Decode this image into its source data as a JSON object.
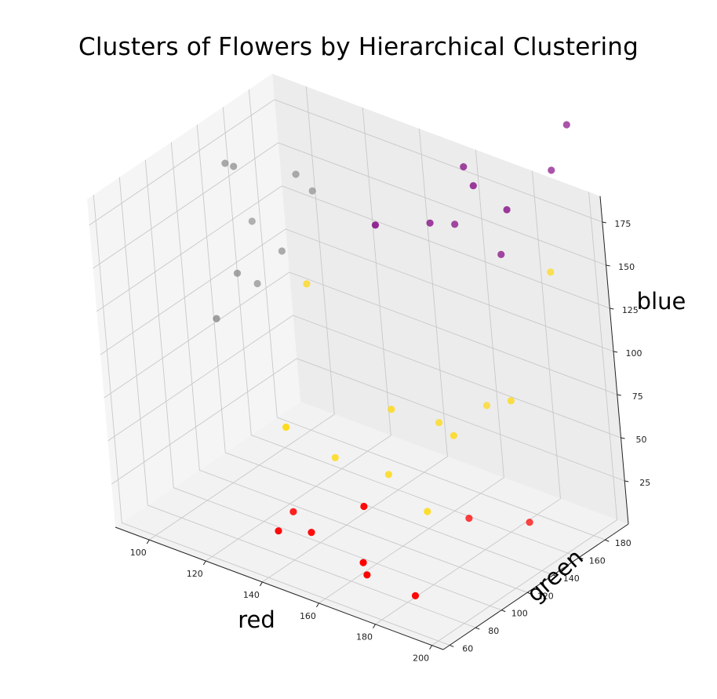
{
  "chart_data": {
    "type": "scatter",
    "projection": "3d",
    "title": "Clusters of Flowers by Hierarchical Clustering",
    "xlabel": "red",
    "ylabel": "green",
    "zlabel": "blue",
    "x_ticks": [
      100,
      120,
      140,
      160,
      180,
      200
    ],
    "y_ticks": [
      60,
      80,
      100,
      120,
      140,
      160,
      180
    ],
    "z_ticks": [
      25,
      50,
      75,
      100,
      125,
      150,
      175
    ],
    "xlim": [
      88,
      204
    ],
    "ylim": [
      55,
      198
    ],
    "zlim": [
      0,
      190
    ],
    "grid": true,
    "series": [
      {
        "color": "#ff0000",
        "points": [
          {
            "x": 140,
            "y": 70,
            "z": 22
          },
          {
            "x": 148,
            "y": 78,
            "z": 22
          },
          {
            "x": 132,
            "y": 98,
            "z": 14
          },
          {
            "x": 175,
            "y": 62,
            "z": 22
          },
          {
            "x": 170,
            "y": 70,
            "z": 22
          },
          {
            "x": 182,
            "y": 82,
            "z": 4
          },
          {
            "x": 166,
            "y": 82,
            "z": 46
          },
          {
            "x": 187,
            "y": 160,
            "z": 10
          },
          {
            "x": 170,
            "y": 150,
            "z": 7
          }
        ]
      },
      {
        "color": "#ffd700",
        "points": [
          {
            "x": 165,
            "y": 130,
            "z": 18
          },
          {
            "x": 148,
            "y": 138,
            "z": 25
          },
          {
            "x": 132,
            "y": 132,
            "z": 28
          },
          {
            "x": 132,
            "y": 98,
            "z": 63
          },
          {
            "x": 150,
            "y": 140,
            "z": 63
          },
          {
            "x": 167,
            "y": 150,
            "z": 53
          },
          {
            "x": 180,
            "y": 168,
            "z": 72
          },
          {
            "x": 165,
            "y": 180,
            "z": 54
          },
          {
            "x": 158,
            "y": 158,
            "z": 51
          },
          {
            "x": 118,
            "y": 150,
            "z": 111
          },
          {
            "x": 190,
            "y": 185,
            "z": 144
          }
        ]
      },
      {
        "color": "#800080",
        "points": [
          {
            "x": 160,
            "y": 120,
            "z": 186
          },
          {
            "x": 165,
            "y": 150,
            "z": 175
          },
          {
            "x": 168,
            "y": 162,
            "z": 170
          },
          {
            "x": 182,
            "y": 166,
            "z": 159
          },
          {
            "x": 191,
            "y": 155,
            "z": 196
          },
          {
            "x": 182,
            "y": 150,
            "z": 207
          },
          {
            "x": 174,
            "y": 160,
            "z": 208
          },
          {
            "x": 194,
            "y": 184,
            "z": 206
          },
          {
            "x": 200,
            "y": 186,
            "z": 235
          }
        ]
      },
      {
        "color": "#808080",
        "points": [
          {
            "x": 90,
            "y": 170,
            "z": 120
          },
          {
            "x": 95,
            "y": 160,
            "z": 92
          },
          {
            "x": 98,
            "y": 140,
            "z": 110
          },
          {
            "x": 105,
            "y": 160,
            "z": 117
          },
          {
            "x": 110,
            "y": 165,
            "z": 162
          },
          {
            "x": 112,
            "y": 172,
            "z": 150
          },
          {
            "x": 95,
            "y": 128,
            "z": 88
          },
          {
            "x": 95,
            "y": 150,
            "z": 165
          },
          {
            "x": 92,
            "y": 150,
            "z": 165
          }
        ]
      }
    ]
  }
}
